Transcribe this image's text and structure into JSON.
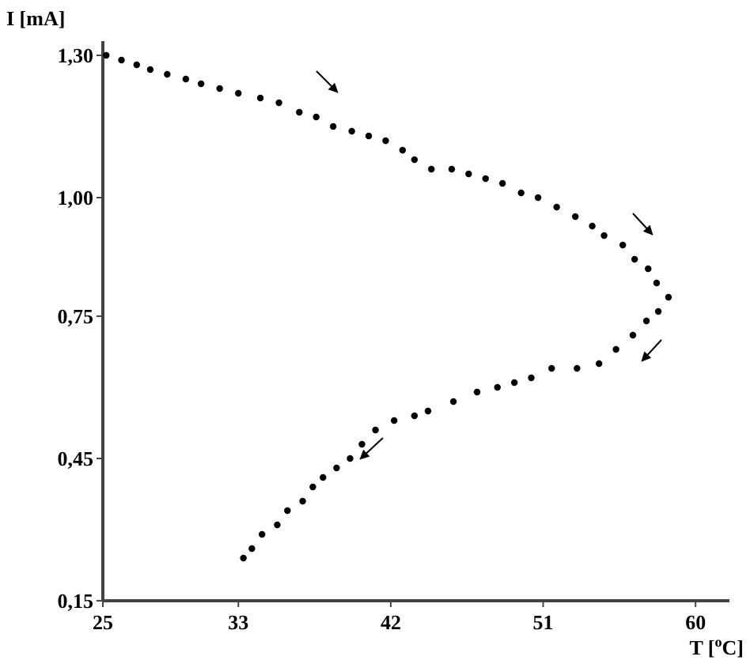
{
  "chart_data": {
    "type": "scatter",
    "xlabel": "T [$^{o}$C]",
    "ylabel": "I [mA]",
    "marker": "circle",
    "grid": false,
    "xlim": [
      25,
      62
    ],
    "xticks": [
      25,
      33,
      42,
      51,
      60
    ],
    "ylim": [
      0.15,
      1.33
    ],
    "yticks": [
      {
        "value": 0.15,
        "label": "0,15"
      },
      {
        "value": 0.45,
        "label": "0,45"
      },
      {
        "value": 0.75,
        "label": "0,75"
      },
      {
        "value": 1.0,
        "label": "1,00"
      },
      {
        "value": 1.3,
        "label": "1,30"
      }
    ],
    "series": [
      {
        "color": "#000000",
        "x": [
          25.2,
          26.1,
          27.0,
          27.8,
          28.8,
          29.9,
          30.8,
          31.9,
          33.0,
          34.3,
          35.4,
          36.6,
          37.6,
          38.6,
          39.7,
          40.7,
          41.7,
          42.7,
          43.4,
          44.4,
          45.6,
          46.6,
          47.6,
          48.6,
          49.7,
          50.7,
          51.8,
          52.9,
          53.9,
          54.6,
          55.7,
          56.4,
          57.2,
          57.7,
          58.4,
          57.8,
          57.1,
          56.3,
          55.3,
          54.3,
          53.0,
          51.5,
          50.3,
          49.3,
          48.3,
          47.1,
          45.7,
          44.2,
          43.4,
          42.2,
          41.1,
          40.3,
          39.6,
          38.8,
          38.0,
          37.4,
          36.8,
          35.9,
          35.3,
          34.4,
          33.8,
          33.3
        ],
        "values": [
          1.3,
          1.29,
          1.28,
          1.27,
          1.26,
          1.25,
          1.24,
          1.23,
          1.22,
          1.21,
          1.2,
          1.18,
          1.17,
          1.15,
          1.14,
          1.13,
          1.12,
          1.1,
          1.08,
          1.06,
          1.06,
          1.05,
          1.04,
          1.03,
          1.01,
          1.0,
          0.98,
          0.96,
          0.94,
          0.92,
          0.9,
          0.87,
          0.85,
          0.82,
          0.79,
          0.76,
          0.74,
          0.71,
          0.68,
          0.65,
          0.64,
          0.64,
          0.62,
          0.61,
          0.6,
          0.59,
          0.57,
          0.55,
          0.54,
          0.53,
          0.51,
          0.48,
          0.45,
          0.43,
          0.41,
          0.39,
          0.36,
          0.34,
          0.31,
          0.29,
          0.26,
          0.24
        ]
      }
    ]
  }
}
